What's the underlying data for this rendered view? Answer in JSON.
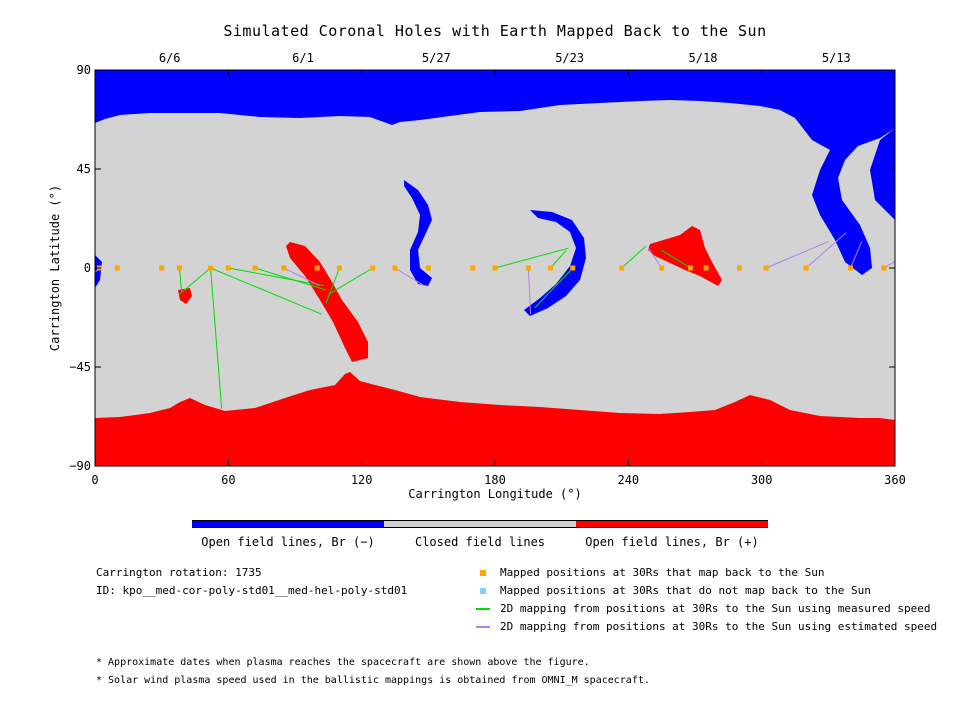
{
  "title": "Simulated Coronal Holes with Earth Mapped Back to the Sun",
  "chart_data": {
    "type": "map",
    "xlabel": "Carrington Longitude (°)",
    "ylabel": "Carrington Latitude (°)",
    "xlim": [
      0,
      360
    ],
    "ylim": [
      -90,
      90
    ],
    "xticks": [
      "0",
      "60",
      "120",
      "180",
      "240",
      "300",
      "360"
    ],
    "yticks": [
      "90",
      "45",
      "0",
      "−45",
      "−90"
    ],
    "date_ticks": [
      {
        "label": "6/6",
        "lon": 30
      },
      {
        "label": "6/1",
        "lon": 90
      },
      {
        "label": "5/27",
        "lon": 150
      },
      {
        "label": "5/23",
        "lon": 210
      },
      {
        "label": "5/18",
        "lon": 270
      },
      {
        "label": "5/13",
        "lon": 330
      }
    ],
    "colorbar": [
      {
        "label": "Open field lines, Br (−)",
        "color": "#0000ff"
      },
      {
        "label": "Closed field lines",
        "color": "#d3d3d3"
      },
      {
        "label": "Open field lines, Br (+)",
        "color": "#ff0000"
      }
    ],
    "mapped_points": [
      {
        "lon": 2,
        "lat": 0,
        "to": [
          {
            "lon": 0,
            "lat": -2,
            "kind": "estimated"
          }
        ]
      },
      {
        "lon": 10,
        "lat": 0,
        "to": []
      },
      {
        "lon": 30,
        "lat": 0,
        "to": []
      },
      {
        "lon": 38,
        "lat": 0,
        "to": [
          {
            "lon": 39,
            "lat": -11,
            "kind": "measured"
          }
        ]
      },
      {
        "lon": 52,
        "lat": 0,
        "to": [
          {
            "lon": 38,
            "lat": -12,
            "kind": "measured"
          },
          {
            "lon": 57,
            "lat": -64,
            "kind": "measured"
          },
          {
            "lon": 102,
            "lat": -21,
            "kind": "measured"
          }
        ]
      },
      {
        "lon": 60,
        "lat": 0,
        "to": [
          {
            "lon": 103,
            "lat": -8,
            "kind": "measured"
          }
        ]
      },
      {
        "lon": 72,
        "lat": 0,
        "to": [
          {
            "lon": 104,
            "lat": -10,
            "kind": "measured"
          }
        ]
      },
      {
        "lon": 85,
        "lat": 0,
        "to": [
          {
            "lon": 101,
            "lat": -8,
            "kind": "estimated"
          }
        ]
      },
      {
        "lon": 100,
        "lat": 0,
        "to": []
      },
      {
        "lon": 110,
        "lat": 0,
        "to": [
          {
            "lon": 104,
            "lat": -16,
            "kind": "measured"
          }
        ]
      },
      {
        "lon": 125,
        "lat": 0,
        "to": [
          {
            "lon": 105,
            "lat": -12,
            "kind": "measured"
          }
        ]
      },
      {
        "lon": 135,
        "lat": 0,
        "to": [
          {
            "lon": 148,
            "lat": -8,
            "kind": "estimated"
          }
        ]
      },
      {
        "lon": 150,
        "lat": 0,
        "to": []
      },
      {
        "lon": 170,
        "lat": 0,
        "to": []
      },
      {
        "lon": 180,
        "lat": 0,
        "to": [
          {
            "lon": 213,
            "lat": 9,
            "kind": "measured"
          }
        ]
      },
      {
        "lon": 195,
        "lat": 0,
        "to": [
          {
            "lon": 196,
            "lat": -21,
            "kind": "estimated"
          }
        ]
      },
      {
        "lon": 205,
        "lat": 0,
        "to": [
          {
            "lon": 212,
            "lat": 8,
            "kind": "measured"
          }
        ]
      },
      {
        "lon": 215,
        "lat": 0,
        "to": [
          {
            "lon": 198,
            "lat": -18,
            "kind": "measured"
          }
        ]
      },
      {
        "lon": 237,
        "lat": 0,
        "to": [
          {
            "lon": 248,
            "lat": 10,
            "kind": "measured"
          }
        ]
      },
      {
        "lon": 255,
        "lat": 0,
        "to": [
          {
            "lon": 249,
            "lat": 9,
            "kind": "estimated"
          }
        ]
      },
      {
        "lon": 268,
        "lat": 0,
        "to": [
          {
            "lon": 255,
            "lat": 8,
            "kind": "measured"
          }
        ]
      },
      {
        "lon": 275,
        "lat": 0,
        "to": []
      },
      {
        "lon": 290,
        "lat": 0,
        "to": []
      },
      {
        "lon": 302,
        "lat": 0,
        "to": [
          {
            "lon": 330,
            "lat": 12,
            "kind": "estimated"
          }
        ]
      },
      {
        "lon": 320,
        "lat": 0,
        "to": [
          {
            "lon": 338,
            "lat": 16,
            "kind": "estimated"
          }
        ]
      },
      {
        "lon": 340,
        "lat": 0,
        "to": [
          {
            "lon": 345,
            "lat": 12,
            "kind": "estimated"
          }
        ]
      },
      {
        "lon": 355,
        "lat": 0,
        "to": [
          {
            "lon": 360,
            "lat": 3,
            "kind": "estimated"
          }
        ]
      }
    ]
  },
  "info": {
    "rotation": "Carrington rotation: 1735",
    "id": "ID: kpo__med-cor-poly-std01__med-hel-poly-std01"
  },
  "legend": [
    {
      "kind": "square",
      "color": "#ffa500",
      "label": "Mapped positions at 30Rs that map back to the Sun"
    },
    {
      "kind": "square",
      "color": "#87cefa",
      "label": "Mapped positions at 30Rs that do not map back to the Sun"
    },
    {
      "kind": "line",
      "color": "#00dd00",
      "label": "2D mapping from positions at 30Rs to the Sun using measured speed"
    },
    {
      "kind": "line",
      "color": "#b080f0",
      "label": "2D mapping from positions at 30Rs to the Sun using estimated speed"
    }
  ],
  "notes": [
    "* Approximate dates when plasma reaches the spacecraft are shown above the figure.",
    "* Solar wind plasma speed used in the ballistic mappings is obtained from OMNI_M spacecraft."
  ]
}
